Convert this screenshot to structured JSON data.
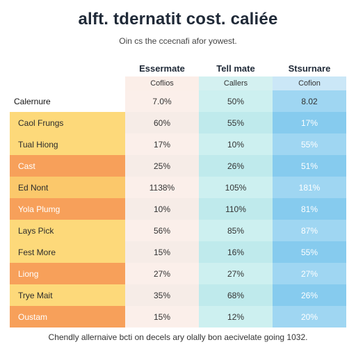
{
  "title": "alft. tdernatit cost. caliée",
  "subtitle": "Oin cs the ccecnafi afor yowest.",
  "columns": [
    {
      "name": "Essermate",
      "sub": "Coflios"
    },
    {
      "name": "Tell mate",
      "sub": "Callers"
    },
    {
      "name": "Stsurnare",
      "sub": "Cofion"
    }
  ],
  "rows": [
    {
      "label": "Calernure",
      "v1": "7.0%",
      "v2": "50%",
      "v3": "8.02"
    },
    {
      "label": "Caol Frungs",
      "v1": "60%",
      "v2": "55%",
      "v3": "17%"
    },
    {
      "label": "Tual Hiong",
      "v1": "17%",
      "v2": "10%",
      "v3": "55%"
    },
    {
      "label": "Cast",
      "v1": "25%",
      "v2": "26%",
      "v3": "51%"
    },
    {
      "label": "Ed Nont",
      "v1": "1138%",
      "v2": "105%",
      "v3": "181%"
    },
    {
      "label": "Yola Plumg",
      "v1": "10%",
      "v2": "110%",
      "v3": "81%"
    },
    {
      "label": "Lays Pick",
      "v1": "56%",
      "v2": "85%",
      "v3": "87%"
    },
    {
      "label": "Fest More",
      "v1": "15%",
      "v2": "16%",
      "v3": "55%"
    },
    {
      "label": "Liong",
      "v1": "27%",
      "v2": "27%",
      "v3": "27%"
    },
    {
      "label": "Trye Mait",
      "v1": "35%",
      "v2": "68%",
      "v3": "26%"
    },
    {
      "label": "Oustam",
      "v1": "15%",
      "v2": "12%",
      "v3": "20%"
    }
  ],
  "footer": "Chendly allernaive bcti on decels ary olally bon aecivelate going 1032."
}
